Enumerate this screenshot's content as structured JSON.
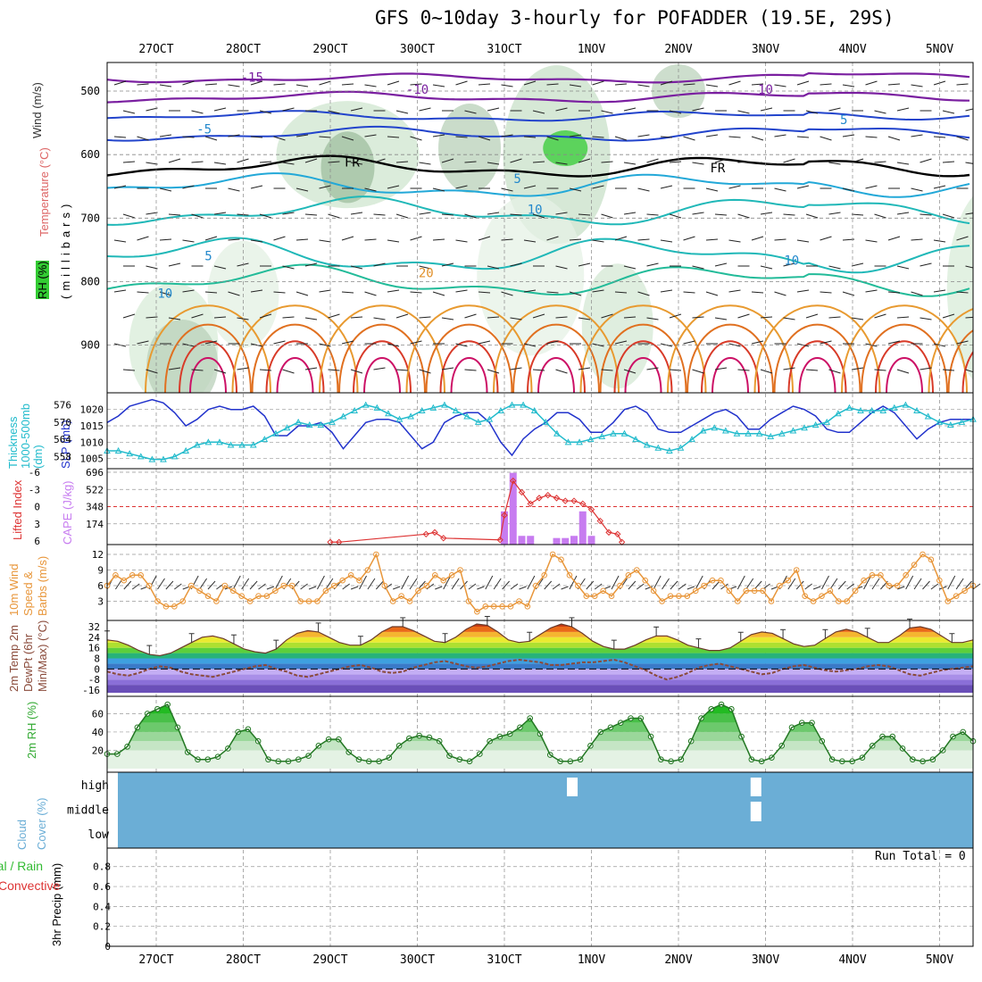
{
  "title": "GFS 0~10day 3-hourly for POFADDER (19.5E, 29S)",
  "colors": {
    "dewpt": "#8a4a3a",
    "rh": "#33aa33",
    "cloud": "#6baed6",
    "cape": "#c77cf0",
    "li": "#dd3333",
    "wind": "#e8963a",
    "slp": "#2233cc",
    "thick": "#22bbcc"
  },
  "date_labels": [
    "27OCT",
    "28OCT",
    "29OCT",
    "30OCT",
    "31OCT",
    "1NOV",
    "2NOV",
    "3NOV",
    "4NOV",
    "5NOV"
  ],
  "chart_data": [
    {
      "type": "contour",
      "ylabel_parts": {
        "wind": "Wind (m/s)",
        "temp": "Temperature (°C)",
        "rh": "RH (%)",
        "mb": "(millibars)"
      },
      "pressure_ticks": [
        500,
        600,
        700,
        800,
        900
      ],
      "contour_labels": [
        {
          "text": "-15",
          "day": 1.1,
          "p": 485
        },
        {
          "text": "-10",
          "day": 3.0,
          "p": 504
        },
        {
          "text": "10",
          "day": 7.0,
          "p": 504
        },
        {
          "text": "-5",
          "day": 0.55,
          "p": 567
        },
        {
          "text": "5",
          "day": 7.9,
          "p": 552
        },
        {
          "text": "FR",
          "day": 2.25,
          "p": 619
        },
        {
          "text": "FR",
          "day": 6.45,
          "p": 628
        },
        {
          "text": "5",
          "day": 4.15,
          "p": 645
        },
        {
          "text": "10",
          "day": 4.35,
          "p": 693
        },
        {
          "text": "5",
          "day": 0.6,
          "p": 766
        },
        {
          "text": "10",
          "day": 7.3,
          "p": 773
        },
        {
          "text": "20",
          "day": 3.1,
          "p": 793
        },
        {
          "text": "10",
          "day": 0.1,
          "p": 825
        }
      ]
    },
    {
      "type": "line",
      "title": "",
      "ylabel_left": "Thickness 1000-500mb (dm)",
      "ylabel_right": "SLP (mb)",
      "thickness_ticks": [
        558,
        564,
        570,
        576
      ],
      "slp_ticks": [
        1005,
        1010,
        1015,
        1020
      ],
      "series": [
        {
          "name": "SLP (mb)",
          "values": [
            1016,
            1018,
            1021,
            1022,
            1023,
            1022,
            1019,
            1015,
            1017,
            1020,
            1021,
            1020,
            1020,
            1021,
            1018,
            1012,
            1012,
            1015,
            1015,
            1016,
            1013,
            1008,
            1012,
            1016,
            1017,
            1017,
            1016,
            1012,
            1008,
            1010,
            1016,
            1018,
            1019,
            1019,
            1016,
            1010,
            1006,
            1011,
            1014,
            1016,
            1019,
            1019,
            1017,
            1013,
            1013,
            1016,
            1020,
            1021,
            1019,
            1014,
            1013,
            1013,
            1015,
            1017,
            1019,
            1020,
            1018,
            1014,
            1014,
            1017,
            1019,
            1021,
            1020,
            1018,
            1014,
            1013,
            1013,
            1016,
            1019,
            1021,
            1019,
            1015,
            1011,
            1014,
            1016,
            1017,
            1017,
            1017
          ]
        },
        {
          "name": "Thickness (dm)",
          "values": [
            560,
            560,
            559,
            558,
            557,
            557,
            558,
            560,
            562,
            563,
            563,
            562,
            562,
            562,
            564,
            566,
            568,
            570,
            569,
            569,
            570,
            572,
            574,
            576,
            575,
            573,
            571,
            572,
            574,
            575,
            576,
            574,
            572,
            570,
            571,
            574,
            576,
            576,
            574,
            570,
            566,
            563,
            563,
            564,
            565,
            566,
            566,
            564,
            562,
            561,
            560,
            561,
            564,
            567,
            568,
            567,
            566,
            566,
            566,
            565,
            566,
            567,
            568,
            569,
            570,
            573,
            575,
            574,
            574,
            574,
            575,
            576,
            574,
            572,
            570,
            569,
            570,
            571
          ]
        }
      ]
    },
    {
      "type": "bar",
      "ylabel_left": "Lifted Index",
      "ylabel_right": "CAPE (J/kg)",
      "li_ticks": [
        -6,
        -3,
        0,
        3,
        6
      ],
      "cape_ticks": [
        174,
        348,
        522,
        696
      ],
      "cape_bars": [
        [
          4.0,
          300
        ],
        [
          4.1,
          690
        ],
        [
          4.2,
          52
        ],
        [
          4.3,
          52
        ],
        [
          4.6,
          30
        ],
        [
          4.7,
          30
        ],
        [
          4.8,
          52
        ],
        [
          4.9,
          300
        ],
        [
          5.0,
          52
        ]
      ],
      "li_points": [
        [
          2.0,
          6.2
        ],
        [
          2.1,
          6.2
        ],
        [
          3.1,
          4.8
        ],
        [
          3.2,
          4.5
        ],
        [
          3.3,
          5.5
        ],
        [
          3.95,
          5.8
        ],
        [
          4.0,
          1.5
        ],
        [
          4.1,
          -4.5
        ],
        [
          4.2,
          -2.5
        ],
        [
          4.3,
          -0.5
        ],
        [
          4.4,
          -1.5
        ],
        [
          4.5,
          -2.0
        ],
        [
          4.6,
          -1.5
        ],
        [
          4.7,
          -1.0
        ],
        [
          4.8,
          -1.0
        ],
        [
          4.9,
          -0.5
        ],
        [
          5.0,
          0.5
        ],
        [
          5.1,
          2.5
        ],
        [
          5.2,
          4.5
        ],
        [
          5.3,
          4.8
        ],
        [
          5.35,
          6.2
        ]
      ]
    },
    {
      "type": "line",
      "ylabel": "10m Wind Speed & Barbs (m/s)",
      "ticks": [
        3,
        6,
        9,
        12
      ],
      "series": [
        {
          "name": "10m Wind Speed (m/s)",
          "values": [
            6,
            8,
            7,
            8,
            8,
            6,
            3,
            2,
            2,
            3,
            6,
            5,
            4,
            3,
            6,
            5,
            4,
            3,
            4,
            4,
            5,
            6,
            6,
            3,
            3,
            3,
            5,
            6,
            7,
            8,
            7,
            9,
            12,
            6,
            3,
            4,
            3,
            5,
            6,
            8,
            7,
            8,
            9,
            3,
            1,
            2,
            2,
            2,
            2,
            3,
            2,
            6,
            8,
            12,
            11,
            8,
            6,
            4,
            4,
            5,
            4,
            6,
            8,
            9,
            7,
            5,
            3,
            4,
            4,
            4,
            5,
            6,
            7,
            7,
            5,
            3,
            5,
            5,
            5,
            3,
            6,
            7,
            9,
            4,
            3,
            4,
            5,
            3,
            3,
            5,
            7,
            8,
            8,
            6,
            6,
            8,
            10,
            12,
            11,
            7,
            3,
            4,
            5,
            6
          ]
        }
      ]
    },
    {
      "type": "area",
      "ylabel": "2m Temp 2m DewPt (6hr Min/Max) (°C)",
      "ticks": [
        -16,
        -8,
        0,
        8,
        16,
        24,
        32
      ],
      "tick_labels": [
        "-16",
        "-8",
        "0",
        "8",
        "16",
        "24",
        "32"
      ],
      "series": [
        {
          "name": "2m Temp (°C)",
          "values": [
            22,
            21,
            18,
            14,
            11,
            10,
            12,
            16,
            20,
            24,
            25,
            23,
            19,
            15,
            13,
            12,
            15,
            22,
            27,
            29,
            28,
            24,
            20,
            18,
            18,
            22,
            28,
            32,
            32,
            29,
            25,
            21,
            20,
            24,
            30,
            34,
            33,
            28,
            22,
            20,
            21,
            26,
            31,
            34,
            32,
            27,
            21,
            17,
            15,
            15,
            18,
            22,
            25,
            25,
            22,
            18,
            16,
            14,
            14,
            16,
            21,
            26,
            28,
            27,
            23,
            19,
            17,
            18,
            23,
            28,
            30,
            28,
            24,
            20,
            20,
            25,
            31,
            32,
            30,
            25,
            20,
            20,
            22
          ]
        },
        {
          "name": "2m DewPt (°C)",
          "values": [
            -2,
            -4,
            -5,
            -3,
            0,
            2,
            1,
            -2,
            -4,
            -5,
            -6,
            -4,
            -2,
            0,
            2,
            3,
            0,
            -2,
            -5,
            -6,
            -4,
            -2,
            0,
            2,
            3,
            1,
            -2,
            -3,
            -2,
            1,
            3,
            5,
            6,
            4,
            2,
            1,
            2,
            4,
            6,
            7,
            6,
            5,
            3,
            3,
            4,
            5,
            5,
            6,
            7,
            5,
            2,
            -1,
            -5,
            -8,
            -6,
            -3,
            1,
            3,
            4,
            2,
            0,
            -2,
            -4,
            -3,
            0,
            2,
            3,
            1,
            -1,
            -2,
            -1,
            0,
            2,
            3,
            2,
            -1,
            -4,
            -5,
            -3,
            -1,
            0,
            1,
            2
          ]
        }
      ]
    },
    {
      "type": "area",
      "ylabel": "2m RH (%)",
      "ticks": [
        20,
        40,
        60
      ],
      "series": [
        {
          "name": "2m RH (%)",
          "values": [
            16,
            16,
            24,
            45,
            60,
            65,
            70,
            45,
            18,
            10,
            10,
            13,
            22,
            40,
            43,
            30,
            10,
            8,
            8,
            10,
            14,
            25,
            32,
            32,
            18,
            10,
            8,
            8,
            12,
            25,
            33,
            36,
            34,
            30,
            14,
            10,
            8,
            16,
            30,
            35,
            38,
            45,
            55,
            38,
            15,
            8,
            8,
            10,
            25,
            40,
            45,
            50,
            55,
            55,
            35,
            10,
            8,
            10,
            30,
            55,
            65,
            70,
            65,
            35,
            10,
            8,
            12,
            25,
            45,
            50,
            50,
            30,
            10,
            8,
            8,
            12,
            25,
            35,
            35,
            22,
            10,
            8,
            10,
            20,
            35,
            40,
            30
          ]
        }
      ]
    },
    {
      "type": "bar",
      "ylabel": "Cloud Cover (%)",
      "levels": [
        "high",
        "middle",
        "low"
      ],
      "clear_blocks": [
        {
          "day": 4.78,
          "level": "high"
        },
        {
          "day": 6.89,
          "level": "high"
        },
        {
          "day": 6.89,
          "level": "middle"
        }
      ]
    },
    {
      "type": "bar",
      "ylabel": "3hr Precip (mm)",
      "legend": [
        "Total / Rain",
        "Convective"
      ],
      "ticks": [
        "0",
        "0.2",
        "0.4",
        "0.6",
        "0.8"
      ],
      "run_total": "Run Total = 0",
      "values": []
    }
  ]
}
